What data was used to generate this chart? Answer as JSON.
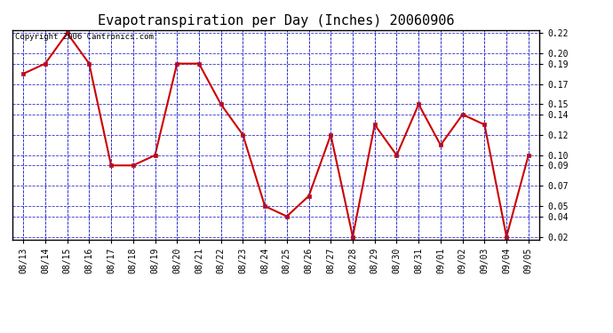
{
  "title": "Evapotranspiration per Day (Inches) 20060906",
  "copyright_text": "Copyright 2006 Cantronics.com",
  "dates": [
    "08/13",
    "08/14",
    "08/15",
    "08/16",
    "08/17",
    "08/18",
    "08/19",
    "08/20",
    "08/21",
    "08/22",
    "08/23",
    "08/24",
    "08/25",
    "08/26",
    "08/27",
    "08/28",
    "08/29",
    "08/30",
    "08/31",
    "09/01",
    "09/02",
    "09/03",
    "09/04",
    "09/05"
  ],
  "values": [
    0.18,
    0.19,
    0.22,
    0.19,
    0.09,
    0.09,
    0.1,
    0.19,
    0.19,
    0.15,
    0.12,
    0.05,
    0.04,
    0.06,
    0.12,
    0.02,
    0.13,
    0.1,
    0.15,
    0.11,
    0.14,
    0.13,
    0.02,
    0.1
  ],
  "ylim": [
    0.02,
    0.22
  ],
  "yticks": [
    0.02,
    0.04,
    0.05,
    0.07,
    0.09,
    0.1,
    0.12,
    0.14,
    0.15,
    0.17,
    0.19,
    0.2,
    0.22
  ],
  "line_color": "#cc0000",
  "marker_color": "#cc0000",
  "bg_color": "#ffffff",
  "plot_bg_color": "#ffffff",
  "grid_color": "#3333cc",
  "border_color": "#000000",
  "title_fontsize": 11,
  "tick_fontsize": 7,
  "copyright_fontsize": 6.5
}
